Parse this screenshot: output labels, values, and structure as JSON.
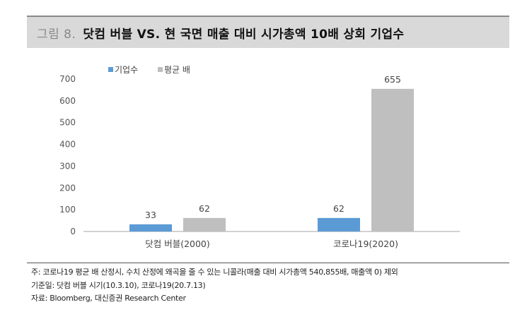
{
  "figure": {
    "label": "그림 8.",
    "title": "닷컴 버블 VS. 현 국면 매출 대비 시가총액 10배 상회 기업수"
  },
  "chart_data": {
    "type": "bar",
    "categories": [
      "닷컴 버블(2000)",
      "코로나19(2020)"
    ],
    "series": [
      {
        "name": "기업수",
        "values": [
          33,
          62
        ],
        "color": "#5b9bd5"
      },
      {
        "name": "평균 배",
        "values": [
          62,
          655
        ],
        "color": "#bfbfbf"
      }
    ],
    "ylim": [
      0,
      700
    ],
    "yticks": [
      0,
      100,
      200,
      300,
      400,
      500,
      600,
      700
    ],
    "legend_position": "top-left",
    "grid": false
  },
  "notes": [
    "주: 코로나19 평균 배 산정시, 수치 산정에 왜곡을 줄 수 있는 니콜라(매출 대비 시가총액 540,855배, 매출액 0) 제외",
    "기준일: 닷컴 버블 시기(10.3.10), 코로나19(20.7.13)",
    "자료: Bloomberg, 대신증권 Research Center"
  ]
}
